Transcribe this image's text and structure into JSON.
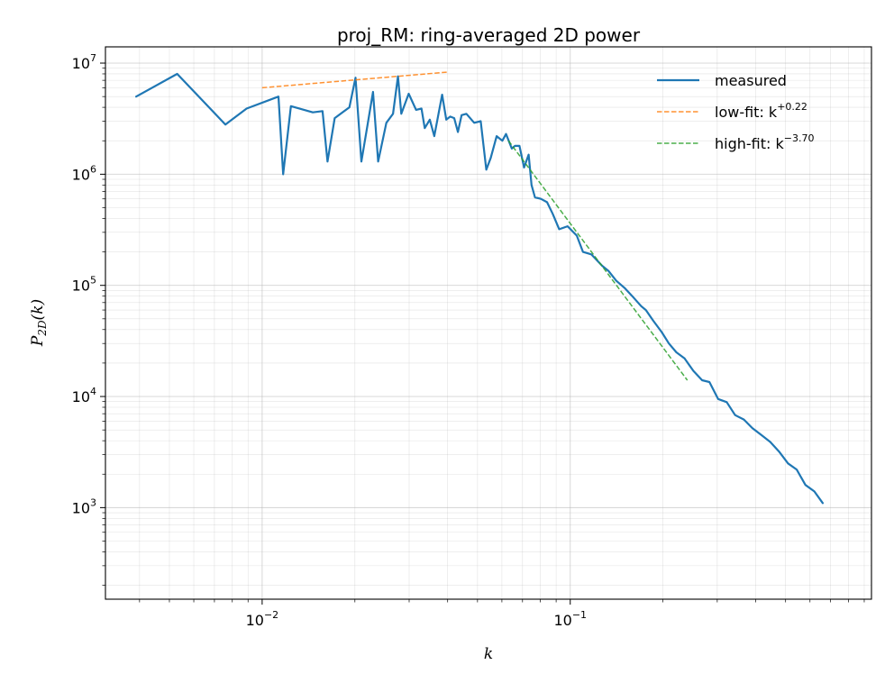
{
  "chart_data": {
    "type": "line",
    "title": "proj_RM: ring-averaged 2D power",
    "xlabel": "k",
    "ylabel_base": "P",
    "ylabel_sub": "2D",
    "ylabel_arg": "(k)",
    "xscale": "log",
    "yscale": "log",
    "xlim": [
      0.0031,
      0.95
    ],
    "ylim": [
      150,
      14000000
    ],
    "grid": true,
    "legend_position": "top-right",
    "x_major_ticks": [
      {
        "value": 0.01,
        "base": "10",
        "exp": "−2"
      },
      {
        "value": 0.1,
        "base": "10",
        "exp": "−1"
      }
    ],
    "y_major_ticks": [
      {
        "value": 1000,
        "base": "10",
        "exp": "3"
      },
      {
        "value": 10000,
        "base": "10",
        "exp": "4"
      },
      {
        "value": 100000,
        "base": "10",
        "exp": "5"
      },
      {
        "value": 1000000,
        "base": "10",
        "exp": "6"
      },
      {
        "value": 10000000,
        "base": "10",
        "exp": "7"
      }
    ],
    "series": [
      {
        "name": "measured",
        "legend_prefix": "measured",
        "legend_exp": "",
        "color": "#1f77b4",
        "dashed": false,
        "x": [
          0.0039,
          0.0053,
          0.0076,
          0.0089,
          0.0113,
          0.0117,
          0.0124,
          0.0146,
          0.0157,
          0.0163,
          0.0172,
          0.0192,
          0.0201,
          0.021,
          0.022,
          0.0229,
          0.0238,
          0.0253,
          0.0266,
          0.0276,
          0.0283,
          0.0299,
          0.0316,
          0.0329,
          0.0337,
          0.035,
          0.0362,
          0.0384,
          0.0396,
          0.0408,
          0.042,
          0.0432,
          0.0444,
          0.046,
          0.0488,
          0.0512,
          0.0534,
          0.0552,
          0.0577,
          0.0602,
          0.0619,
          0.0646,
          0.0662,
          0.0684,
          0.0708,
          0.0733,
          0.0749,
          0.0768,
          0.0803,
          0.0841,
          0.0877,
          0.0921,
          0.098,
          0.105,
          0.11,
          0.117,
          0.127,
          0.133,
          0.141,
          0.15,
          0.159,
          0.17,
          0.176,
          0.186,
          0.198,
          0.209,
          0.221,
          0.235,
          0.251,
          0.268,
          0.283,
          0.302,
          0.322,
          0.343,
          0.366,
          0.39,
          0.417,
          0.446,
          0.476,
          0.509,
          0.543,
          0.58,
          0.62,
          0.66
        ],
        "y": [
          5000000,
          8000000,
          2800000,
          3900000,
          5000000,
          1000000,
          4100000,
          3600000,
          3700000,
          1300000,
          3200000,
          4000000,
          7400000,
          1300000,
          2800000,
          5500000,
          1300000,
          2900000,
          3500000,
          7600000,
          3500000,
          5300000,
          3800000,
          3900000,
          2600000,
          3100000,
          2200000,
          5200000,
          3100000,
          3300000,
          3200000,
          2400000,
          3400000,
          3500000,
          2900000,
          3000000,
          1100000,
          1400000,
          2200000,
          2000000,
          2300000,
          1700000,
          1800000,
          1800000,
          1150000,
          1500000,
          800000,
          620000,
          600000,
          560000,
          440000,
          320000,
          340000,
          280000,
          200000,
          190000,
          150000,
          135000,
          110000,
          95000,
          80000,
          65000,
          60000,
          48000,
          38000,
          30000,
          25000,
          22000,
          17000,
          14000,
          13500,
          9500,
          8900,
          6800,
          6200,
          5200,
          4500,
          3900,
          3200,
          2500,
          2200,
          1600,
          1400,
          1100
        ]
      },
      {
        "name": "low-fit",
        "legend_prefix": "low-fit: k",
        "legend_exp": "+0.22",
        "color": "#ff7f0e",
        "dashed": true,
        "x": [
          0.01,
          0.04
        ],
        "y": [
          6000000,
          8300000
        ]
      },
      {
        "name": "high-fit",
        "legend_prefix": "high-fit: k",
        "legend_exp": "−3.70",
        "color": "#2ca02c",
        "dashed": true,
        "x": [
          0.063,
          0.24
        ],
        "y": [
          2000000,
          14000
        ]
      }
    ]
  }
}
